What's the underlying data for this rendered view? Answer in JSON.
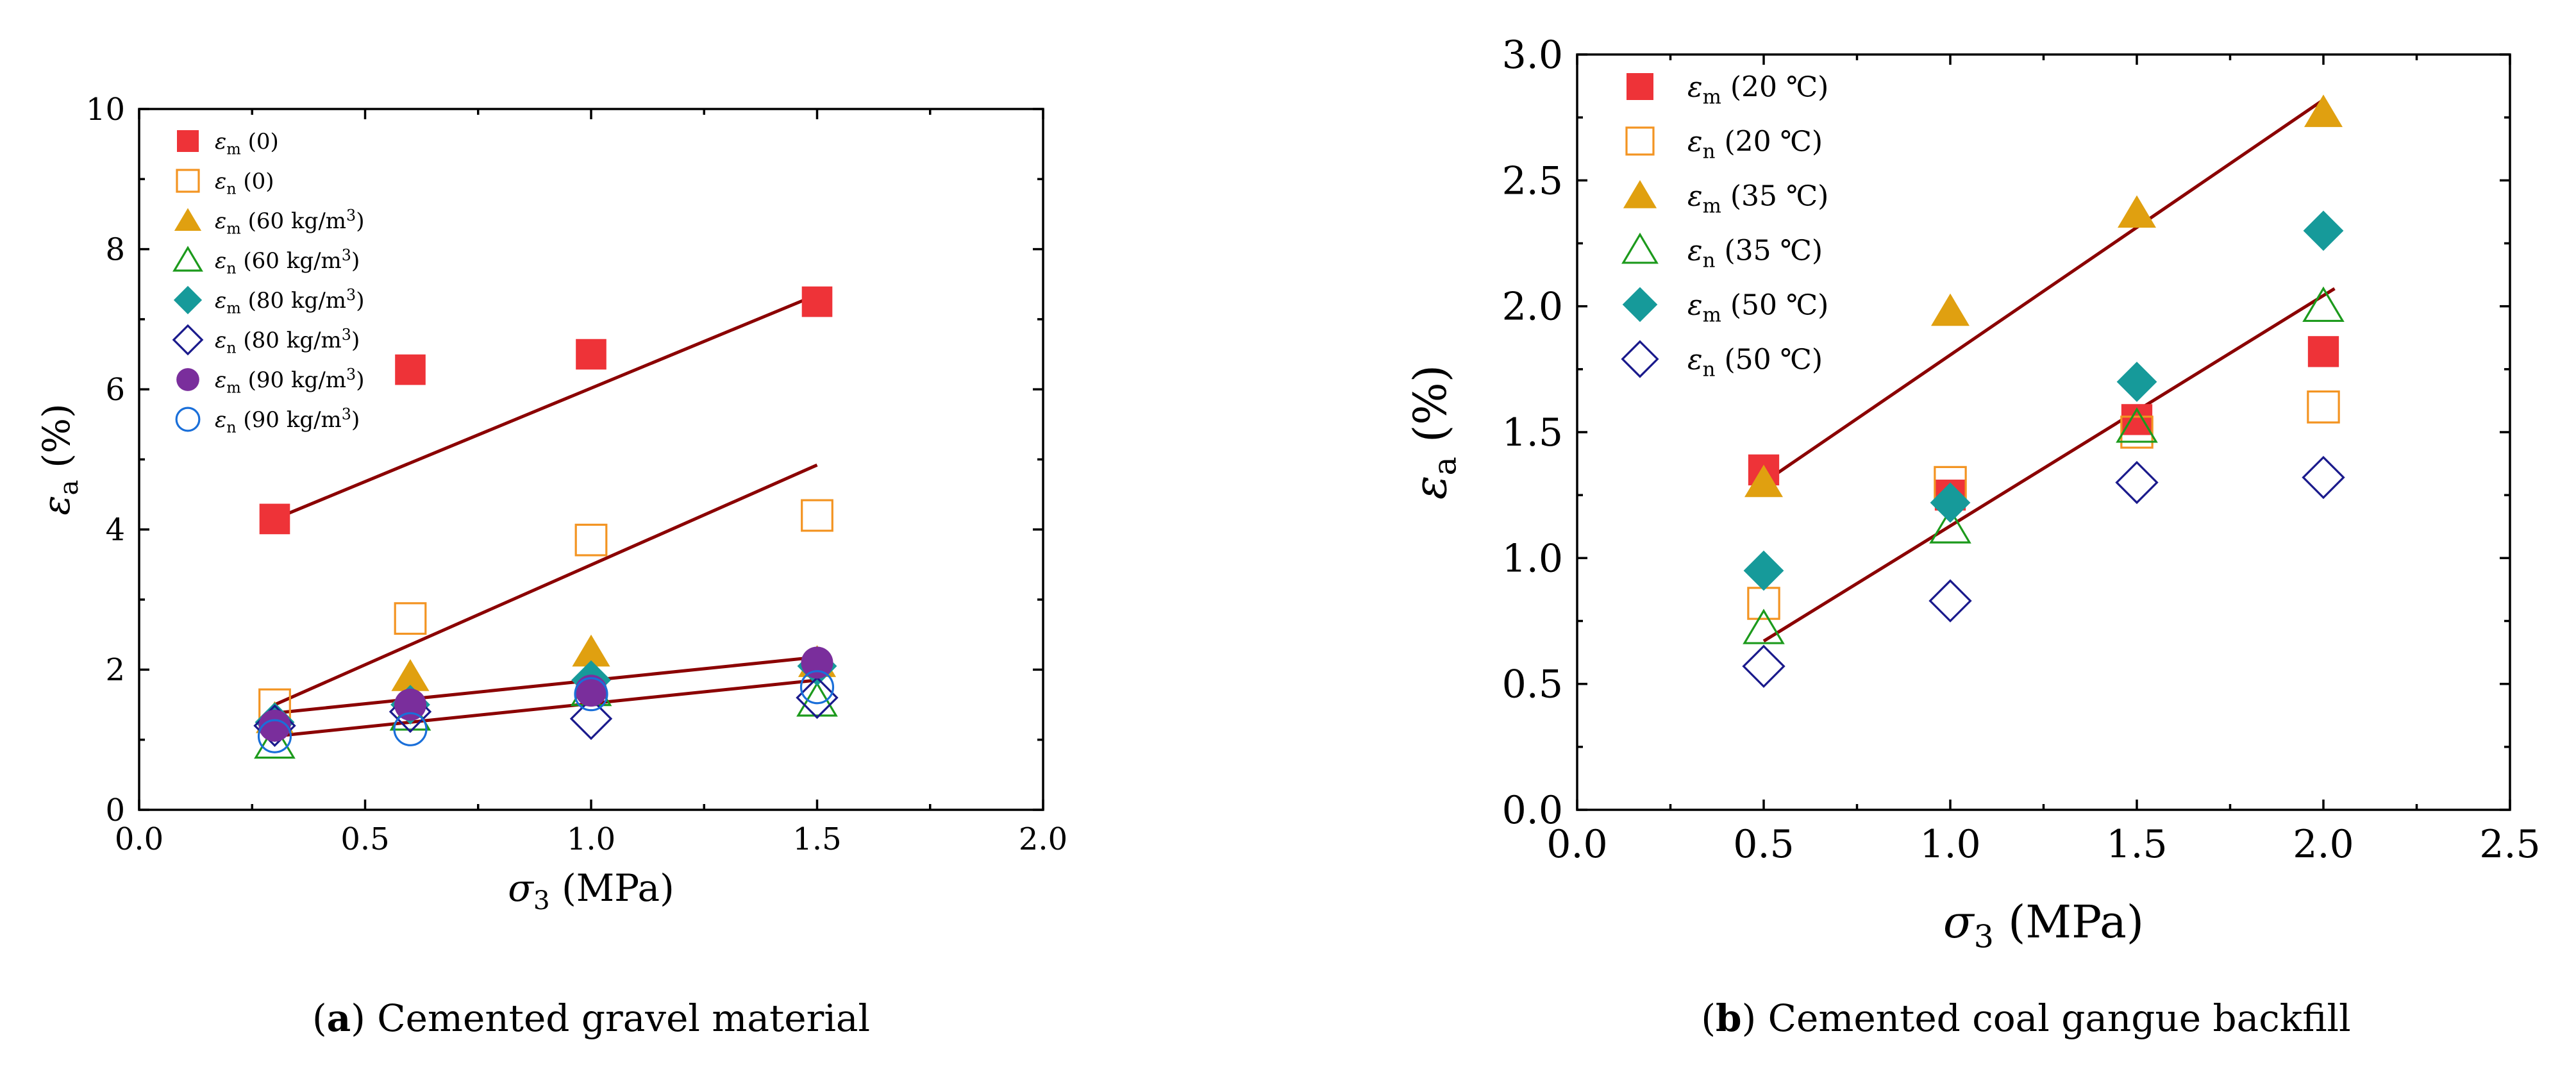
{
  "chart_data": [
    {
      "type": "scatter",
      "panel_label": "a",
      "caption": "Cemented gravel material",
      "xlabel_symbol": "σ",
      "xlabel_sub": "3",
      "xlabel_unit": " (MPa)",
      "ylabel_symbol": "ε",
      "ylabel_sub": "a",
      "ylabel_unit": " (%)",
      "xlim": [
        0,
        2.0
      ],
      "ylim": [
        0,
        10
      ],
      "xticks": [
        "0.0",
        "0.5",
        "1.0",
        "1.5",
        "2.0"
      ],
      "yticks": [
        "0",
        "2",
        "4",
        "6",
        "8",
        "10"
      ],
      "xtick_values": [
        0,
        0.5,
        1.0,
        1.5,
        2.0
      ],
      "ytick_values": [
        0,
        2,
        4,
        6,
        8,
        10
      ],
      "legend_position": "top-left",
      "series": [
        {
          "name": "εm (0)",
          "sym": "ε",
          "sub": "m",
          "tail": " (0)",
          "marker": "square-filled",
          "color": "#ee3338",
          "x": [
            0.3,
            0.6,
            1.0,
            1.5
          ],
          "y": [
            4.15,
            6.28,
            6.5,
            7.25
          ]
        },
        {
          "name": "εn (0)",
          "sym": "ε",
          "sub": "n",
          "tail": " (0)",
          "marker": "square-open",
          "color": "#f39422",
          "x": [
            0.3,
            0.6,
            1.0,
            1.5
          ],
          "y": [
            1.5,
            2.73,
            3.85,
            4.2
          ]
        },
        {
          "name": "εm (60 kg/m3)",
          "sym": "ε",
          "sub": "m",
          "tail": " (60 kg/m",
          "sup": "3",
          "tail2": ")",
          "marker": "triangle-filled",
          "color": "#e0a010",
          "x": [
            0.3,
            0.6,
            1.0,
            1.5
          ],
          "y": [
            1.3,
            1.9,
            2.25,
            2.1
          ]
        },
        {
          "name": "εn (60 kg/m3)",
          "sym": "ε",
          "sub": "n",
          "tail": " (60 kg/m",
          "sup": "3",
          "tail2": ")",
          "marker": "triangle-open",
          "color": "#1c9a1c",
          "x": [
            0.3,
            0.6,
            1.0,
            1.5
          ],
          "y": [
            0.95,
            1.35,
            1.7,
            1.55
          ]
        },
        {
          "name": "εm (80 kg/m3)",
          "sym": "ε",
          "sub": "m",
          "tail": " (80 kg/m",
          "sup": "3",
          "tail2": ")",
          "marker": "diamond-filled",
          "color": "#169a9a",
          "x": [
            0.3,
            0.6,
            1.0,
            1.5
          ],
          "y": [
            1.25,
            1.5,
            1.85,
            2.05
          ]
        },
        {
          "name": "εn (80 kg/m3)",
          "sym": "ε",
          "sub": "n",
          "tail": " (80 kg/m",
          "sup": "3",
          "tail2": ")",
          "marker": "diamond-open",
          "color": "#1a1a8c",
          "x": [
            0.3,
            0.6,
            1.0,
            1.5
          ],
          "y": [
            1.2,
            1.4,
            1.3,
            1.6
          ]
        },
        {
          "name": "εm (90 kg/m3)",
          "sym": "ε",
          "sub": "m",
          "tail": " (90 kg/m",
          "sup": "3",
          "tail2": ")",
          "marker": "circle-filled",
          "color": "#7a2e9c",
          "x": [
            0.3,
            0.6,
            1.0,
            1.5
          ],
          "y": [
            1.2,
            1.5,
            1.7,
            2.1
          ]
        },
        {
          "name": "εn (90 kg/m3)",
          "sym": "ε",
          "sub": "n",
          "tail": " (90 kg/m",
          "sup": "3",
          "tail2": ")",
          "marker": "circle-open",
          "color": "#1a6fd9",
          "x": [
            0.3,
            0.6,
            1.0,
            1.5
          ],
          "y": [
            1.05,
            1.15,
            1.65,
            1.75
          ]
        }
      ],
      "fit_lines": [
        {
          "x": [
            0.3,
            1.5
          ],
          "y": [
            4.15,
            7.35
          ]
        },
        {
          "x": [
            0.3,
            1.5
          ],
          "y": [
            1.5,
            4.92
          ]
        },
        {
          "x": [
            0.3,
            1.5
          ],
          "y": [
            1.38,
            2.18
          ]
        },
        {
          "x": [
            0.3,
            1.5
          ],
          "y": [
            1.05,
            1.85
          ]
        }
      ]
    },
    {
      "type": "scatter",
      "panel_label": "b",
      "caption": "Cemented coal gangue backfill",
      "xlabel_symbol": "σ",
      "xlabel_sub": "3",
      "xlabel_unit": " (MPa)",
      "ylabel_symbol": "ε",
      "ylabel_sub": "a",
      "ylabel_unit": " (%)",
      "xlim": [
        0,
        2.5
      ],
      "ylim": [
        0,
        3.0
      ],
      "xticks": [
        "0.0",
        "0.5",
        "1.0",
        "1.5",
        "2.0",
        "2.5"
      ],
      "yticks": [
        "0.0",
        "0.5",
        "1.0",
        "1.5",
        "2.0",
        "2.5",
        "3.0"
      ],
      "xtick_values": [
        0,
        0.5,
        1.0,
        1.5,
        2.0,
        2.5
      ],
      "ytick_values": [
        0,
        0.5,
        1.0,
        1.5,
        2.0,
        2.5,
        3.0
      ],
      "legend_position": "top-left",
      "series": [
        {
          "name": "εm (20 ℃)",
          "sym": "ε",
          "sub": "m",
          "tail": " (20 ℃)",
          "marker": "square-filled",
          "color": "#ee3338",
          "x": [
            0.5,
            1.0,
            1.5,
            2.0
          ],
          "y": [
            1.35,
            1.25,
            1.55,
            1.82
          ]
        },
        {
          "name": "εn (20 ℃)",
          "sym": "ε",
          "sub": "n",
          "tail": " (20 ℃)",
          "marker": "square-open",
          "color": "#f39422",
          "x": [
            0.5,
            1.0,
            1.5,
            2.0
          ],
          "y": [
            0.82,
            1.3,
            1.5,
            1.6
          ]
        },
        {
          "name": "εm (35 ℃)",
          "sym": "ε",
          "sub": "m",
          "tail": " (35 ℃)",
          "marker": "triangle-filled",
          "color": "#e0a010",
          "x": [
            0.5,
            1.0,
            1.5,
            2.0
          ],
          "y": [
            1.3,
            1.98,
            2.37,
            2.77
          ]
        },
        {
          "name": "εn (35 ℃)",
          "sym": "ε",
          "sub": "n",
          "tail": " (35 ℃)",
          "marker": "triangle-open",
          "color": "#1c9a1c",
          "x": [
            0.5,
            1.0,
            1.5,
            2.0
          ],
          "y": [
            0.72,
            1.12,
            1.52,
            2.0
          ]
        },
        {
          "name": "εm (50 ℃)",
          "sym": "ε",
          "sub": "m",
          "tail": " (50 ℃)",
          "marker": "diamond-filled",
          "color": "#169a9a",
          "x": [
            0.5,
            1.0,
            1.5,
            2.0
          ],
          "y": [
            0.95,
            1.22,
            1.7,
            2.3
          ]
        },
        {
          "name": "εn (50 ℃)",
          "sym": "ε",
          "sub": "n",
          "tail": " (50 ℃)",
          "marker": "diamond-open",
          "color": "#1a1a8c",
          "x": [
            0.5,
            1.0,
            1.5,
            2.0
          ],
          "y": [
            0.57,
            0.83,
            1.3,
            1.32
          ]
        }
      ],
      "fit_lines": [
        {
          "x": [
            0.5,
            2.0
          ],
          "y": [
            1.3,
            2.82
          ]
        },
        {
          "x": [
            0.5,
            2.03
          ],
          "y": [
            0.67,
            2.07
          ]
        }
      ]
    }
  ]
}
